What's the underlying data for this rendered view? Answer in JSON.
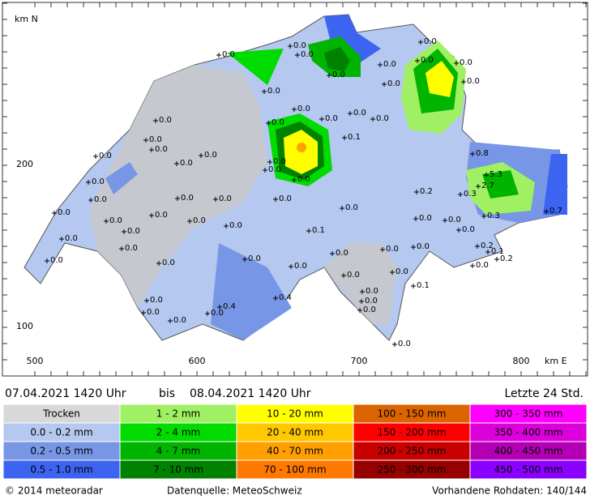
{
  "map": {
    "axis_labels": {
      "north": "km N",
      "east": "km E"
    },
    "north_ticks": [
      "200",
      "100"
    ],
    "east_ticks": [
      "500",
      "600",
      "700",
      "800"
    ],
    "stations": [
      "0.0",
      "0.0",
      "0.0",
      "0.0",
      "0.0",
      "0.0",
      "0.0",
      "0.0",
      "0.0",
      "0.0",
      "0.0",
      "0.0",
      "0.0",
      "0.0",
      "0.0",
      "0.0",
      "0.1",
      "0.0",
      "0.0",
      "0.0",
      "0.0",
      "0.0",
      "0.0",
      "0.0",
      "0.0",
      "0.0",
      "0.0",
      "0.8",
      "5.3",
      "2.7",
      "0.3",
      "0.2",
      "0.0",
      "0.0",
      "0.0",
      "0.0",
      "0.0",
      "0.0",
      "0.0",
      "0.0",
      "0.0",
      "0.0",
      "0.0",
      "0.0",
      "0.3",
      "0.7",
      "0.0",
      "0.1",
      "0.0",
      "0.0",
      "0.0",
      "0.2",
      "0.1",
      "0.2",
      "0.0",
      "0.0",
      "0.0",
      "0.0",
      "0.0",
      "0.0",
      "0.0",
      "0.0",
      "0.0",
      "0.0",
      "0.1",
      "0.0",
      "0.0",
      "0.4",
      "0.4",
      "0.0",
      "0.0",
      "0.0",
      "0.0",
      "0.0",
      "0.0"
    ]
  },
  "header": {
    "from": "07.04.2021 1420 Uhr",
    "to_word": "bis",
    "to": "08.04.2021 1420 Uhr",
    "period": "Letzte 24 Std."
  },
  "legend": [
    {
      "label": "Trocken",
      "color": "#d8d8d8"
    },
    {
      "label": "0.0 - 0.2 mm",
      "color": "#b4c8f0"
    },
    {
      "label": "0.2 - 0.5 mm",
      "color": "#7896e6"
    },
    {
      "label": "0.5 - 1.0 mm",
      "color": "#3c64f0"
    },
    {
      "label": "1 - 2 mm",
      "color": "#a0f064"
    },
    {
      "label": "2 - 4 mm",
      "color": "#00dc00"
    },
    {
      "label": "4 - 7 mm",
      "color": "#00b400"
    },
    {
      "label": "7 - 10 mm",
      "color": "#008200"
    },
    {
      "label": "10 - 20 mm",
      "color": "#ffff00"
    },
    {
      "label": "20 - 40 mm",
      "color": "#ffc800"
    },
    {
      "label": "40 - 70 mm",
      "color": "#ffa000"
    },
    {
      "label": "70 - 100 mm",
      "color": "#ff7800"
    },
    {
      "label": "100 - 150 mm",
      "color": "#dc6400"
    },
    {
      "label": "150 - 200 mm",
      "color": "#ff0000"
    },
    {
      "label": "200 - 250 mm",
      "color": "#c80000"
    },
    {
      "label": "250 - 300 mm",
      "color": "#960000"
    },
    {
      "label": "300 - 350 mm",
      "color": "#ff00ff"
    },
    {
      "label": "350 - 400 mm",
      "color": "#dc00dc"
    },
    {
      "label": "400 - 450 mm",
      "color": "#b400b4"
    },
    {
      "label": "450 - 500 mm",
      "color": "#8c00ff"
    }
  ],
  "footer": {
    "copyright": "© 2014 meteoradar",
    "source": "Datenquelle: MeteoSchweiz",
    "raw": "Vorhandene Rohdaten: 140/144"
  }
}
